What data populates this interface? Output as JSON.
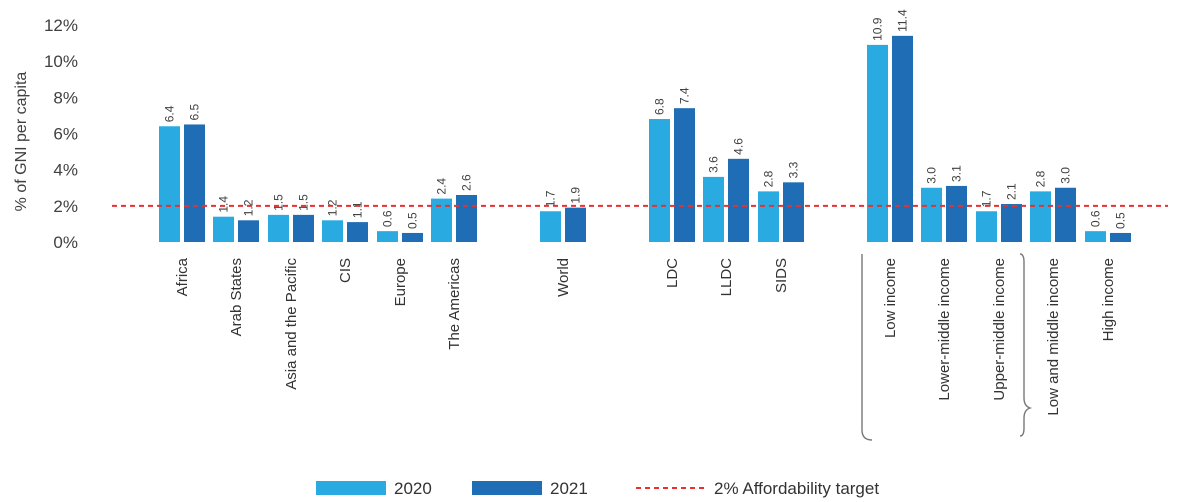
{
  "chart_data": {
    "type": "bar",
    "ylabel": "% of GNI per capita",
    "ylim": [
      0,
      12
    ],
    "yticks": [
      "0%",
      "2%",
      "4%",
      "6%",
      "8%",
      "10%",
      "12%"
    ],
    "categories": [
      "Africa",
      "Arab States",
      "Asia and the Pacific",
      "CIS",
      "Europe",
      "The Americas",
      "World",
      "LDC",
      "LLDC",
      "SIDS",
      "Low income",
      "Lower-middle income",
      "Upper-middle income",
      "Low and middle income",
      "High income"
    ],
    "series": [
      {
        "name": "2020",
        "color": "#29abe2",
        "values": [
          6.4,
          1.4,
          1.5,
          1.2,
          0.6,
          2.4,
          1.7,
          6.8,
          3.6,
          2.8,
          10.9,
          3.0,
          1.7,
          2.8,
          0.6
        ]
      },
      {
        "name": "2021",
        "color": "#1f6db5",
        "values": [
          6.5,
          1.2,
          1.5,
          1.1,
          0.5,
          2.6,
          1.9,
          7.4,
          4.6,
          3.3,
          11.4,
          3.1,
          2.1,
          3.0,
          0.5
        ]
      }
    ],
    "target": {
      "label": "2% Affordability target",
      "value": 2,
      "color": "#e8312f"
    },
    "value_labels": [
      [
        "6.4",
        "6.5"
      ],
      [
        "1.4",
        "1.2"
      ],
      [
        "1.5",
        "1.5"
      ],
      [
        "1.2",
        "1.1"
      ],
      [
        "0.6",
        "0.5"
      ],
      [
        "2.4",
        "2.6"
      ],
      [
        "1.7",
        "1.9"
      ],
      [
        "6.8",
        "7.4"
      ],
      [
        "3.6",
        "4.6"
      ],
      [
        "2.8",
        "3.3"
      ],
      [
        "10.9",
        "11.4"
      ],
      [
        "3.0",
        "3.1"
      ],
      [
        "1.7",
        "2.1"
      ],
      [
        "2.8",
        "3.0"
      ],
      [
        "0.6",
        "0.5"
      ]
    ],
    "grid": false,
    "legend_position": "bottom"
  }
}
